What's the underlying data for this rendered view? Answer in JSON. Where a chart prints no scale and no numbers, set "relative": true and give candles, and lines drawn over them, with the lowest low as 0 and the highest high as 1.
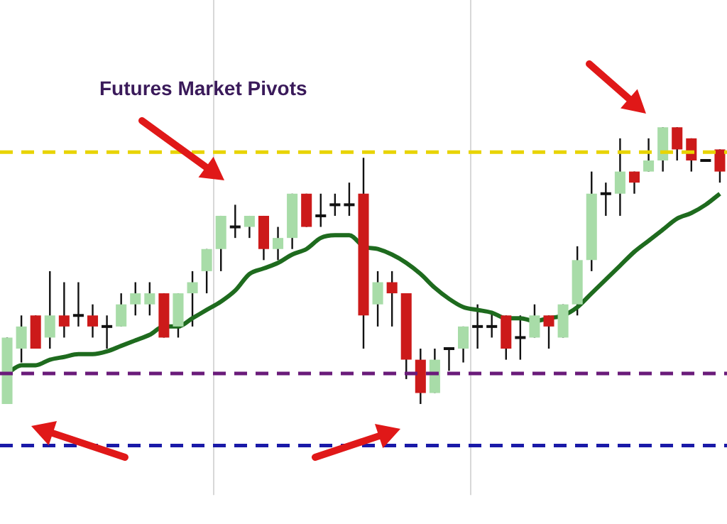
{
  "chart_data": {
    "type": "candlestick",
    "title": "Futures Market Pivots",
    "relative": true,
    "grid": "x",
    "legend": false,
    "categories": [
      null,
      null,
      null,
      null,
      null,
      null,
      null,
      null,
      null,
      null,
      null,
      null,
      null,
      null,
      null,
      null,
      null,
      null,
      null,
      null,
      null,
      null,
      null,
      null,
      null,
      null,
      null,
      null,
      null,
      null,
      null,
      null,
      null,
      null,
      null,
      null,
      null,
      null,
      null,
      null,
      null,
      null,
      null,
      null,
      null,
      null,
      null,
      null,
      null,
      null,
      null
    ],
    "ohlc": [
      [
        0,
        0.24,
        0,
        0.24
      ],
      [
        0.2,
        0.32,
        0.15,
        0.28
      ],
      [
        0.32,
        0.32,
        0.2,
        0.2
      ],
      [
        0.24,
        0.48,
        0.2,
        0.32
      ],
      [
        0.32,
        0.44,
        0.24,
        0.28
      ],
      [
        0.32,
        0.44,
        0.28,
        0.32
      ],
      [
        0.32,
        0.36,
        0.24,
        0.28
      ],
      [
        0.28,
        0.32,
        0.2,
        0.28
      ],
      [
        0.28,
        0.4,
        0.28,
        0.36
      ],
      [
        0.36,
        0.44,
        0.32,
        0.4
      ],
      [
        0.36,
        0.44,
        0.32,
        0.4
      ],
      [
        0.4,
        0.4,
        0.24,
        0.24
      ],
      [
        0.28,
        0.4,
        0.24,
        0.4
      ],
      [
        0.4,
        0.48,
        0.28,
        0.44
      ],
      [
        0.48,
        0.56,
        0.4,
        0.56
      ],
      [
        0.56,
        0.68,
        0.48,
        0.68
      ],
      [
        0.64,
        0.72,
        0.6,
        0.64
      ],
      [
        0.64,
        0.68,
        0.6,
        0.68
      ],
      [
        0.68,
        0.68,
        0.52,
        0.56
      ],
      [
        0.56,
        0.64,
        0.52,
        0.6
      ],
      [
        0.6,
        0.76,
        0.56,
        0.76
      ],
      [
        0.76,
        0.76,
        0.64,
        0.64
      ],
      [
        0.68,
        0.76,
        0.64,
        0.68
      ],
      [
        0.72,
        0.76,
        0.68,
        0.72
      ],
      [
        0.72,
        0.8,
        0.68,
        0.72
      ],
      [
        0.76,
        0.89,
        0.2,
        0.32
      ],
      [
        0.36,
        0.48,
        0.28,
        0.44
      ],
      [
        0.44,
        0.48,
        0.28,
        0.4
      ],
      [
        0.4,
        0.4,
        0.09,
        0.16
      ],
      [
        0.16,
        0.2,
        0,
        0.04
      ],
      [
        0.04,
        0.2,
        0.04,
        0.16
      ],
      [
        0.2,
        0.2,
        0.12,
        0.2
      ],
      [
        0.2,
        0.28,
        0.15,
        0.28
      ],
      [
        0.28,
        0.36,
        0.2,
        0.28
      ],
      [
        0.28,
        0.33,
        0.24,
        0.28
      ],
      [
        0.32,
        0.32,
        0.16,
        0.2
      ],
      [
        0.24,
        0.32,
        0.16,
        0.24
      ],
      [
        0.24,
        0.36,
        0.24,
        0.32
      ],
      [
        0.32,
        0.32,
        0.2,
        0.28
      ],
      [
        0.24,
        0.36,
        0.24,
        0.36
      ],
      [
        0.36,
        0.57,
        0.32,
        0.52
      ],
      [
        0.52,
        0.84,
        0.48,
        0.76
      ],
      [
        0.76,
        0.8,
        0.68,
        0.76
      ],
      [
        0.76,
        0.96,
        0.68,
        0.84
      ],
      [
        0.84,
        0.84,
        0.76,
        0.8
      ],
      [
        0.84,
        0.96,
        0.84,
        0.88
      ],
      [
        0.88,
        1,
        0.84,
        1
      ],
      [
        1,
        1,
        0.88,
        0.92
      ],
      [
        0.96,
        0.96,
        0.84,
        0.88
      ],
      [
        0.88,
        0.88,
        0.88,
        0.88
      ],
      [
        0.92,
        0.92,
        0.8,
        0.84
      ]
    ],
    "colors": [
      "#a8dca8",
      "#a8dca8",
      "#cc1a1a",
      "#a8dca8",
      "#cc1a1a",
      "#111111",
      "#cc1a1a",
      "#111111",
      "#a8dca8",
      "#a8dca8",
      "#a8dca8",
      "#cc1a1a",
      "#a8dca8",
      "#a8dca8",
      "#a8dca8",
      "#a8dca8",
      "#111111",
      "#a8dca8",
      "#cc1a1a",
      "#a8dca8",
      "#a8dca8",
      "#cc1a1a",
      "#111111",
      "#111111",
      "#111111",
      "#cc1a1a",
      "#a8dca8",
      "#cc1a1a",
      "#cc1a1a",
      "#cc1a1a",
      "#a8dca8",
      "#111111",
      "#a8dca8",
      "#111111",
      "#111111",
      "#cc1a1a",
      "#111111",
      "#a8dca8",
      "#cc1a1a",
      "#a8dca8",
      "#a8dca8",
      "#a8dca8",
      "#111111",
      "#a8dca8",
      "#cc1a1a",
      "#a8dca8",
      "#a8dca8",
      "#cc1a1a",
      "#cc1a1a",
      "#111111",
      "#cc1a1a"
    ],
    "series": [
      {
        "type": "line",
        "color": "#1e6b1e",
        "marker": "none",
        "values": [
          0.11,
          0.14,
          0.14,
          0.16,
          0.17,
          0.18,
          0.18,
          0.19,
          0.21,
          0.23,
          0.25,
          0.28,
          0.28,
          0.31,
          0.34,
          0.37,
          0.41,
          0.47,
          0.49,
          0.51,
          0.54,
          0.56,
          0.6,
          0.61,
          0.61,
          0.57,
          0.56,
          0.54,
          0.51,
          0.47,
          0.42,
          0.38,
          0.35,
          0.34,
          0.33,
          0.31,
          0.31,
          0.3,
          0.31,
          0.32,
          0.35,
          0.4,
          0.45,
          0.5,
          0.55,
          0.59,
          0.63,
          0.67,
          0.69,
          0.72,
          0.76
        ]
      }
    ],
    "ref_lines": [
      {
        "axis": "y",
        "value": 0.91,
        "color": "#e8d400",
        "line_style": "dashed"
      },
      {
        "axis": "y",
        "value": 0.11,
        "color": "#6a1b7a",
        "line_style": "dashed"
      },
      {
        "axis": "y",
        "value": -0.15,
        "color": "#1a1aa8",
        "line_style": "dashed"
      }
    ]
  }
}
